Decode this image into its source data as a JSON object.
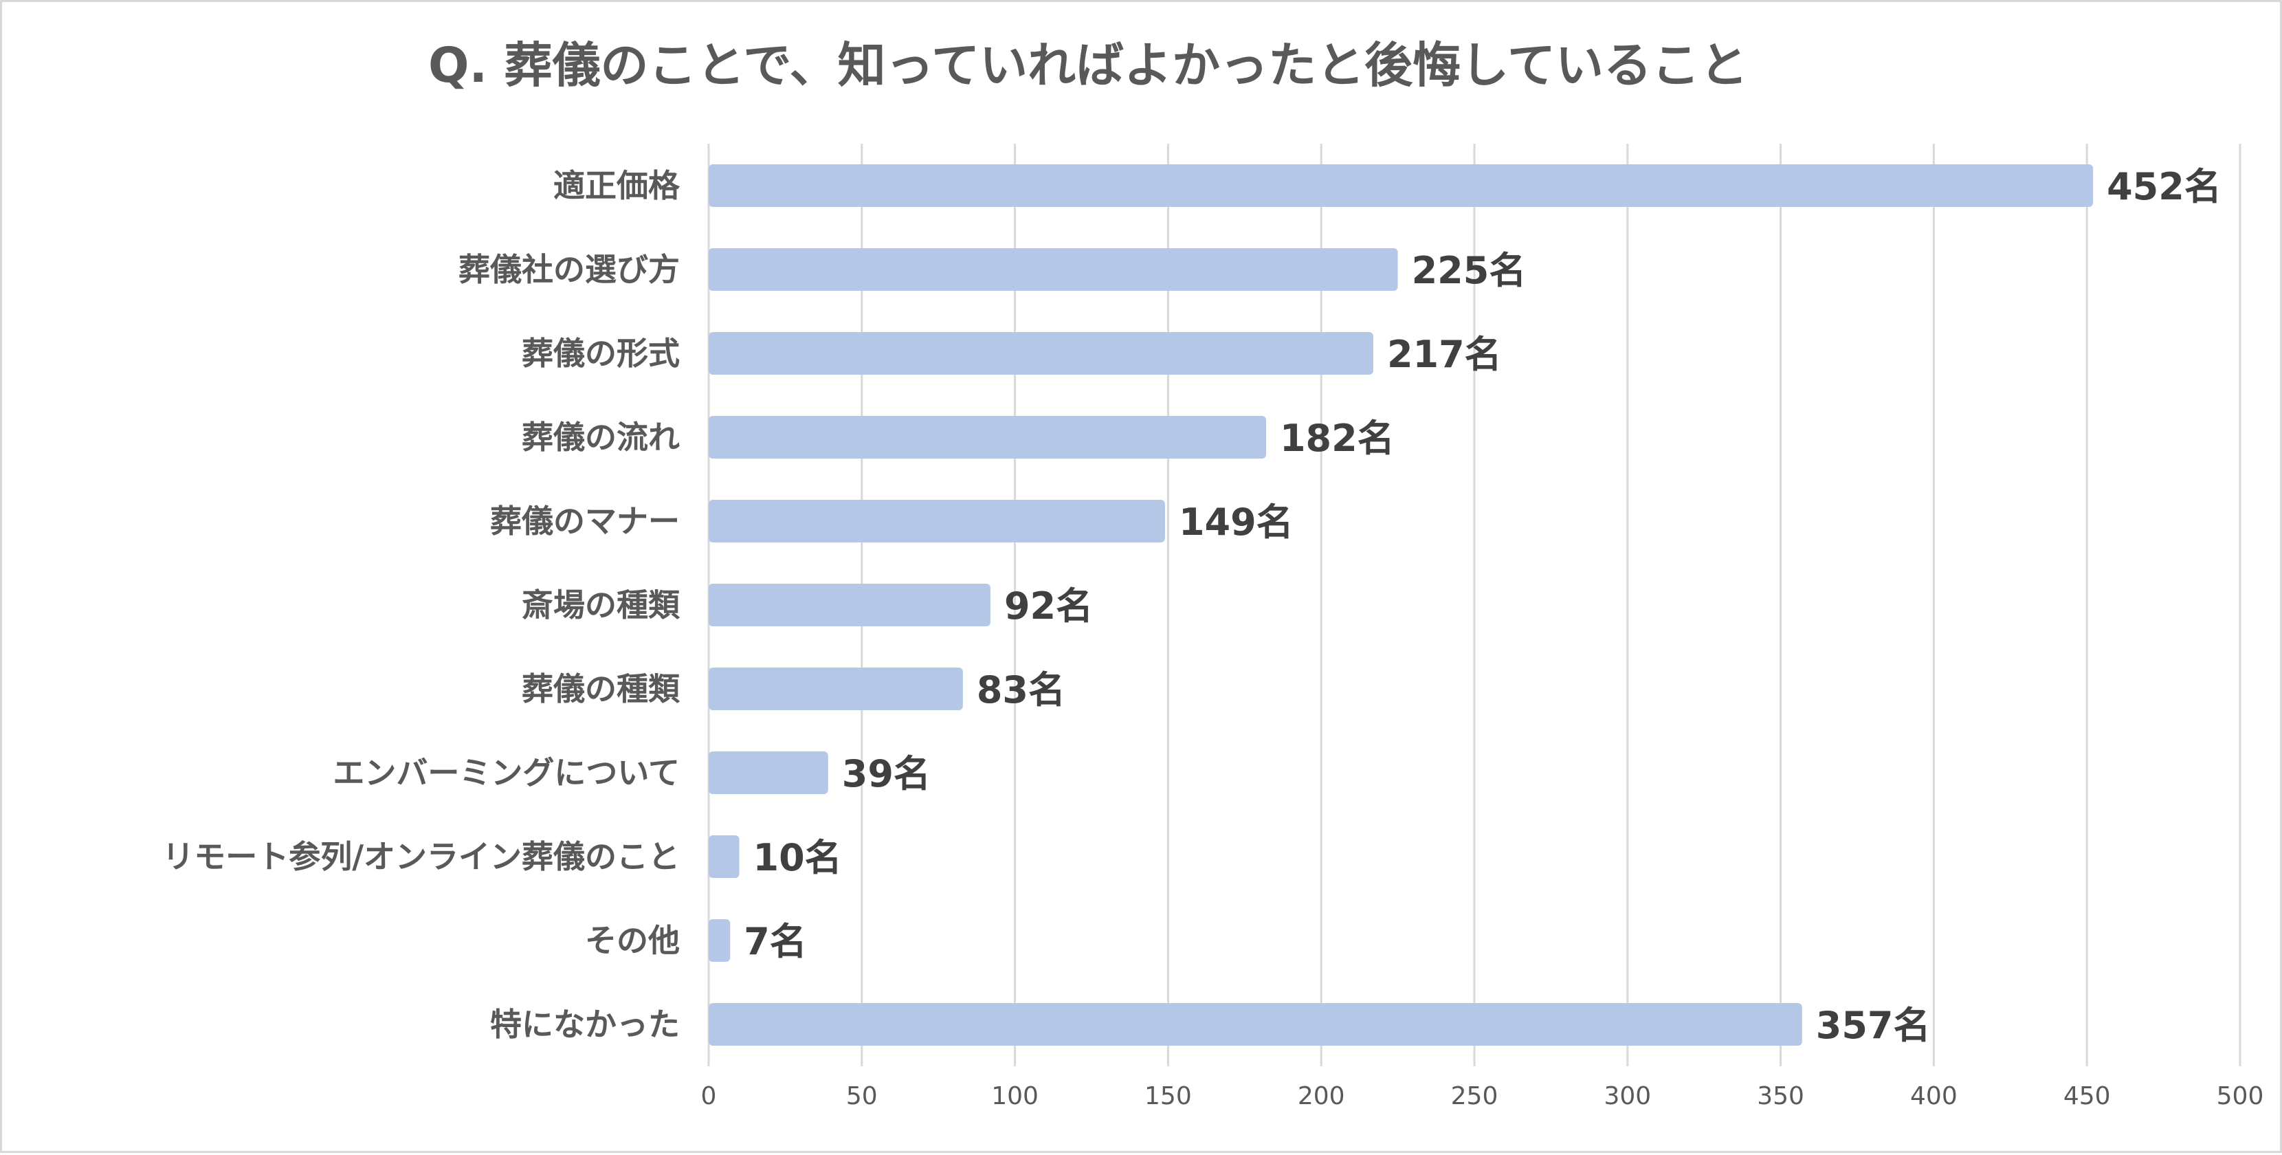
{
  "chart_data": {
    "type": "bar",
    "orientation": "horizontal",
    "title": "Q. 葬儀のことで、知っていればよかったと後悔していること",
    "categories": [
      "適正価格",
      "葬儀社の選び方",
      "葬儀の形式",
      "葬儀の流れ",
      "葬儀のマナー",
      "斎場の種類",
      "葬儀の種類",
      "エンバーミングについて",
      "リモート参列/オンライン葬儀のこと",
      "その他",
      "特になかった"
    ],
    "values": [
      452,
      225,
      217,
      182,
      149,
      92,
      83,
      39,
      10,
      7,
      357
    ],
    "value_unit": "名",
    "xlim": [
      0,
      500
    ],
    "xticks": [
      0,
      50,
      100,
      150,
      200,
      250,
      300,
      350,
      400,
      450,
      500
    ],
    "xlabel": "",
    "ylabel": "",
    "grid": true,
    "legend": "none",
    "bar_color": "#b4c7e7"
  }
}
